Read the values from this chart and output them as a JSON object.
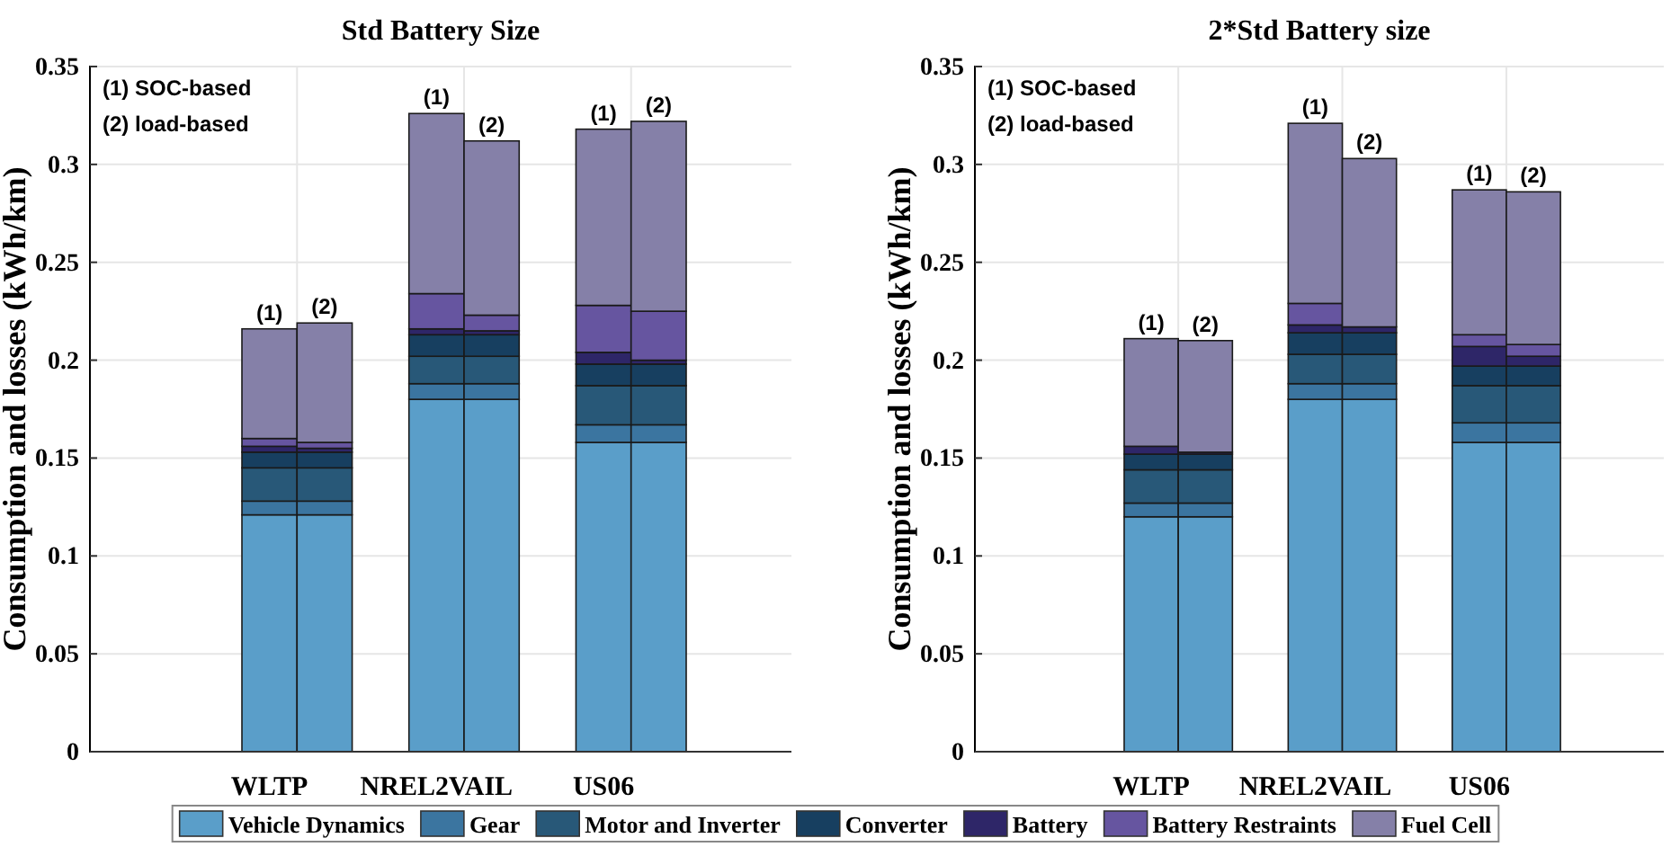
{
  "chart_data": [
    {
      "type": "bar",
      "stacked": true,
      "title": "Std Battery Size",
      "ylabel": "Consumption and losses (kWh/km)",
      "categories": [
        "WLTP",
        null,
        "NREL2VAIL",
        null,
        "US06",
        null
      ],
      "ylim": [
        0,
        0.35
      ],
      "yticks": [
        0,
        0.05,
        0.1,
        0.15,
        0.2,
        0.25,
        0.3,
        0.35
      ],
      "grid": true,
      "legend": "bottom",
      "series": [
        {
          "name": "Vehicle Dynamics",
          "color": "#5a9ec9",
          "values": [
            0.121,
            0.121,
            0.18,
            0.18,
            0.158,
            0.158
          ]
        },
        {
          "name": "Gear",
          "color": "#3b75a0",
          "values": [
            0.007,
            0.007,
            0.008,
            0.008,
            0.009,
            0.009
          ]
        },
        {
          "name": "Motor and Inverter",
          "color": "#285878",
          "values": [
            0.017,
            0.017,
            0.014,
            0.014,
            0.02,
            0.02
          ]
        },
        {
          "name": "Converter",
          "color": "#173f60",
          "values": [
            0.008,
            0.008,
            0.011,
            0.011,
            0.011,
            0.011
          ]
        },
        {
          "name": "Battery",
          "color": "#2e2668",
          "values": [
            0.003,
            0.002,
            0.003,
            0.002,
            0.006,
            0.002
          ]
        },
        {
          "name": "Battery Restraints",
          "color": "#6655a0",
          "values": [
            0.004,
            0.003,
            0.018,
            0.008,
            0.024,
            0.025
          ]
        },
        {
          "name": "Fuel Cell",
          "color": "#8580a8",
          "values": [
            0.056,
            0.061,
            0.092,
            0.089,
            0.09,
            0.097
          ]
        }
      ],
      "value_labels": [
        "(1)",
        "(2)",
        "(1)",
        "(2)",
        "(1)",
        "(2)"
      ],
      "annotations": [
        "(1) SOC-based",
        "(2) load-based"
      ]
    },
    {
      "type": "bar",
      "stacked": true,
      "title": "2*Std Battery size",
      "ylabel": "Consumption and losses (kWh/km)",
      "categories": [
        "WLTP",
        null,
        "NREL2VAIL",
        null,
        "US06",
        null
      ],
      "ylim": [
        0,
        0.35
      ],
      "yticks": [
        0,
        0.05,
        0.1,
        0.15,
        0.2,
        0.25,
        0.3,
        0.35
      ],
      "grid": true,
      "series": [
        {
          "color": "#5a9ec9",
          "values": [
            0.12,
            0.12,
            0.18,
            0.18,
            0.158,
            0.158
          ]
        },
        {
          "color": "#3b75a0",
          "values": [
            0.007,
            0.007,
            0.008,
            0.008,
            0.01,
            0.01
          ]
        },
        {
          "color": "#285878",
          "values": [
            0.017,
            0.017,
            0.015,
            0.015,
            0.019,
            0.019
          ]
        },
        {
          "color": "#173f60",
          "values": [
            0.008,
            0.008,
            0.011,
            0.011,
            0.01,
            0.01
          ]
        },
        {
          "color": "#2e2668",
          "values": [
            0.004,
            0.001,
            0.004,
            0.003,
            0.01,
            0.005
          ]
        },
        {
          "color": "#6655a0",
          "values": [
            0,
            0,
            0.011,
            0,
            0.006,
            0.006
          ]
        },
        {
          "color": "#8580a8",
          "values": [
            0.055,
            0.057,
            0.092,
            0.086,
            0.074,
            0.078
          ]
        }
      ],
      "value_labels": [
        "(1)",
        "(2)",
        "(1)",
        "(2)",
        "(1)",
        "(2)"
      ],
      "annotations": [
        "(1) SOC-based",
        "(2) load-based"
      ]
    }
  ]
}
